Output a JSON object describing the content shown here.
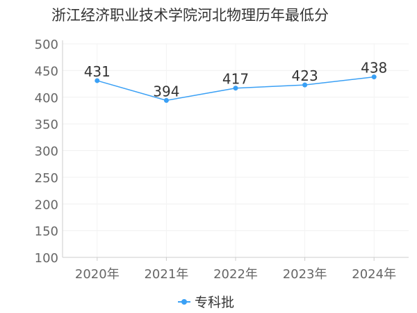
{
  "chart_data": {
    "type": "line",
    "title": "浙江经济职业技术学院河北物理历年最低分",
    "categories": [
      "2020年",
      "2021年",
      "2022年",
      "2023年",
      "2024年"
    ],
    "series": [
      {
        "name": "专科批",
        "values": [
          431,
          394,
          417,
          423,
          438
        ],
        "color": "#3aa0f5"
      }
    ],
    "ylim": [
      100,
      500
    ],
    "yticks": [
      100,
      150,
      200,
      250,
      300,
      350,
      400,
      450,
      500
    ],
    "grid": true,
    "legend_position": "bottom-center"
  }
}
